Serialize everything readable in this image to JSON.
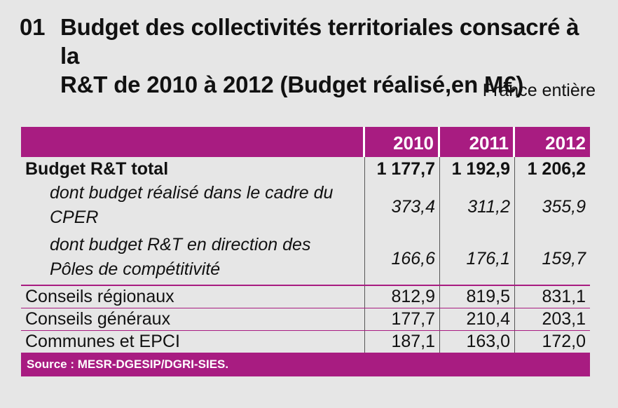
{
  "title": {
    "number": "01",
    "line1": "Budget des collectivités territoriales consacré à la",
    "line2": "R&T de 2010 à 2012 (Budget réalisé,en M€)"
  },
  "subtitle": "France entière",
  "table": {
    "columns": [
      "2010",
      "2011",
      "2012"
    ],
    "rows": [
      {
        "label": "Budget R&T total",
        "values": [
          "1 177,7",
          "1 192,9",
          "1 206,2"
        ]
      },
      {
        "label_line1": "dont budget réalisé dans le cadre du",
        "label_line2": "CPER",
        "values": [
          "373,4",
          "311,2",
          "355,9"
        ]
      },
      {
        "label_line1": "dont budget R&T en direction des",
        "label_line2": "Pôles de compétitivité",
        "values": [
          "166,6",
          "176,1",
          "159,7"
        ]
      },
      {
        "label": "Conseils régionaux",
        "values": [
          "812,9",
          "819,5",
          "831,1"
        ]
      },
      {
        "label": "Conseils généraux",
        "values": [
          "177,7",
          "210,4",
          "203,1"
        ]
      },
      {
        "label": "Communes et EPCI",
        "values": [
          "187,1",
          "163,0",
          "172,0"
        ]
      }
    ]
  },
  "source": "Source : MESR-DGESIP/DGRI-SIES.",
  "colors": {
    "accent": "#a81c81",
    "background": "#e6e6e6"
  }
}
